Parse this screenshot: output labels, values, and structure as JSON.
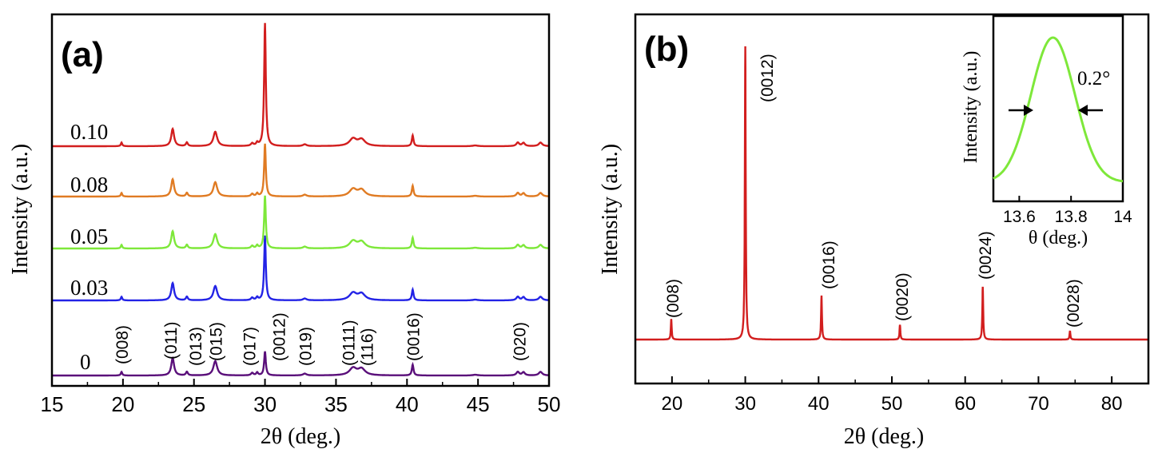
{
  "chart_data": [
    {
      "id": "a",
      "type": "line",
      "panel_label": "(a)",
      "xlabel": "2θ (deg.)",
      "ylabel": "Intensity (a.u.)",
      "xlim": [
        15,
        50
      ],
      "xticks": [
        15,
        20,
        25,
        30,
        35,
        40,
        45,
        50
      ],
      "series": [
        {
          "name": "0",
          "color": "#5a0f7a"
        },
        {
          "name": "0.03",
          "color": "#2323e6"
        },
        {
          "name": "0.05",
          "color": "#7ee83a"
        },
        {
          "name": "0.08",
          "color": "#e07b23"
        },
        {
          "name": "0.10",
          "color": "#d21e1e"
        }
      ],
      "peaks": [
        {
          "x": 19.9,
          "label": "(008)"
        },
        {
          "x": 23.5,
          "label": "(011)"
        },
        {
          "x": 24.5,
          "label": "(013)"
        },
        {
          "x": 26.5,
          "label": "(015)"
        },
        {
          "x": 29.2,
          "label": "(017)"
        },
        {
          "x": 30.0,
          "label": "(0012)"
        },
        {
          "x": 32.8,
          "label": "(019)"
        },
        {
          "x": 36.3,
          "label": "(0111)"
        },
        {
          "x": 36.7,
          "label": "(116)"
        },
        {
          "x": 40.4,
          "label": "(0016)"
        },
        {
          "x": 47.9,
          "label": "(020)"
        }
      ]
    },
    {
      "id": "b",
      "type": "line",
      "panel_label": "(b)",
      "xlabel": "2θ (deg.)",
      "ylabel": "Intensity (a.u.)",
      "xlim": [
        15,
        85
      ],
      "xticks": [
        20,
        30,
        40,
        50,
        60,
        70,
        80
      ],
      "series": [
        {
          "name": "",
          "color": "#d21e1e"
        }
      ],
      "peaks": [
        {
          "x": 19.9,
          "label": "(008)",
          "height": 0.07
        },
        {
          "x": 30.0,
          "label": "(0012)",
          "height": 1.0
        },
        {
          "x": 40.4,
          "label": "(0016)",
          "height": 0.15
        },
        {
          "x": 51.1,
          "label": "(0020)",
          "height": 0.05
        },
        {
          "x": 62.4,
          "label": "(0024)",
          "height": 0.18
        },
        {
          "x": 74.3,
          "label": "(0028)",
          "height": 0.03
        }
      ]
    },
    {
      "id": "b-inset",
      "type": "line",
      "xlabel": "θ (deg.)",
      "ylabel": "Intensity (a.u.)",
      "xlim": [
        13.5,
        14.0
      ],
      "xticks": [
        13.6,
        13.8,
        14.0
      ],
      "series": [
        {
          "name": "",
          "color": "#7ee83a",
          "center": 13.73,
          "fwhm": 0.2
        }
      ],
      "annotation": "0.2°"
    }
  ]
}
